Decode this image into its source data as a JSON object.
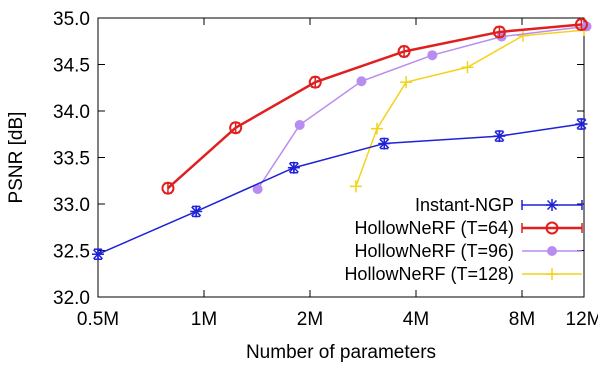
{
  "chart_data": {
    "type": "line",
    "title": "",
    "xlabel": "Number of parameters",
    "ylabel": "PSNR [dB]",
    "x_scale": "log",
    "x_tick_values": [
      0.5,
      1,
      2,
      4,
      8,
      12
    ],
    "x_tick_labels": [
      "0.5M",
      "1M",
      "2M",
      "4M",
      "8M",
      "12M"
    ],
    "y_tick_labels": [
      "32.0",
      "32.5",
      "33.0",
      "33.5",
      "34.0",
      "34.5",
      "35.0"
    ],
    "xlim": [
      0.5,
      12
    ],
    "ylim": [
      32.0,
      35.0
    ],
    "grid": false,
    "legend_position": "bottom-right",
    "series": [
      {
        "name": "Instant-NGP",
        "color": "#1f22d6",
        "marker": "asterisk",
        "error_bars": true,
        "x": [
          0.5,
          0.95,
          1.8,
          3.25,
          6.9,
          11.8
        ],
        "y": [
          32.46,
          32.92,
          33.39,
          33.65,
          33.73,
          33.86
        ]
      },
      {
        "name": "HollowNeRF (T=64)",
        "color": "#e01f1f",
        "marker": "open-circle",
        "error_bars": true,
        "x": [
          0.79,
          1.23,
          2.07,
          3.7,
          6.9,
          11.8
        ],
        "y": [
          33.17,
          33.82,
          34.31,
          34.64,
          34.85,
          34.93
        ]
      },
      {
        "name": "HollowNeRF (T=96)",
        "color": "#b98cf0",
        "marker": "filled-circle",
        "error_bars": false,
        "x": [
          1.42,
          1.87,
          2.8,
          4.45,
          7.0,
          12.2
        ],
        "y": [
          33.16,
          33.85,
          34.32,
          34.6,
          34.8,
          34.91
        ]
      },
      {
        "name": "HollowNeRF (T=128)",
        "color": "#f4d21a",
        "marker": "plus",
        "error_bars": false,
        "x": [
          2.7,
          3.1,
          3.75,
          5.6,
          8.05,
          12.0
        ],
        "y": [
          33.19,
          33.81,
          34.31,
          34.47,
          34.81,
          34.87
        ]
      }
    ]
  }
}
